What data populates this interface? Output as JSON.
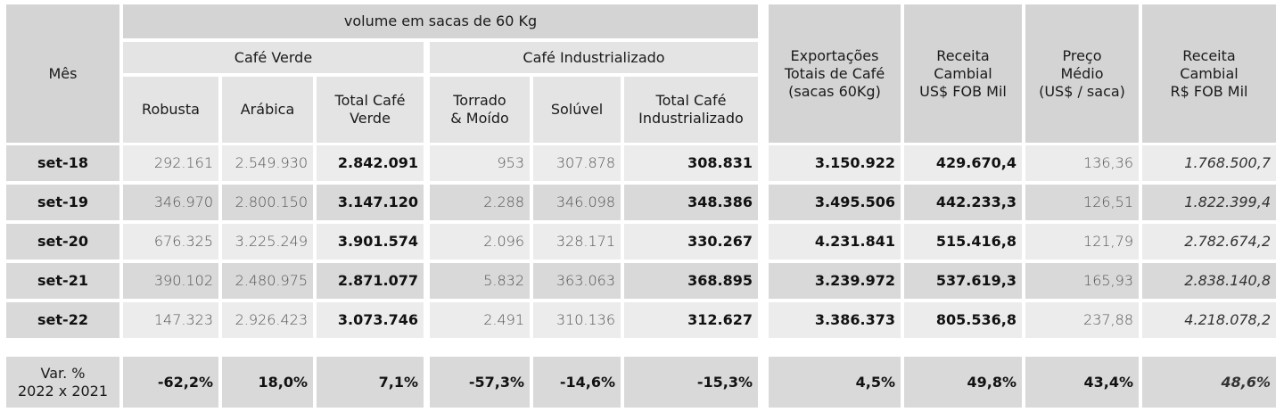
{
  "header": {
    "mes": "Mês",
    "volume": "volume em sacas de 60 Kg",
    "cafe_verde": "Café Verde",
    "cafe_industrializado": "Café Industrializado",
    "robusta": "Robusta",
    "arabica": "Arábica",
    "total_verde": "Total Café\nVerde",
    "torrado": "Torrado\n& Moído",
    "soluvel": "Solúvel",
    "total_ind": "Total Café\nIndustrializado",
    "export_totais": "Exportações\nTotais de Café\n(sacas 60Kg)",
    "receita_usd": "Receita\nCambial\nUS$ FOB Mil",
    "preco_medio": "Preço\nMédio\n(US$ / saca)",
    "receita_brl": "Receita\nCambial\nR$ FOB Mil"
  },
  "rows": [
    {
      "mes": "set-18",
      "robusta": "292.161",
      "arabica": "2.549.930",
      "total_verde": "2.842.091",
      "torrado": "953",
      "soluvel": "307.878",
      "total_ind": "308.831",
      "export": "3.150.922",
      "receita_usd": "429.670,4",
      "preco": "136,36",
      "receita_brl": "1.768.500,7"
    },
    {
      "mes": "set-19",
      "robusta": "346.970",
      "arabica": "2.800.150",
      "total_verde": "3.147.120",
      "torrado": "2.288",
      "soluvel": "346.098",
      "total_ind": "348.386",
      "export": "3.495.506",
      "receita_usd": "442.233,3",
      "preco": "126,51",
      "receita_brl": "1.822.399,4"
    },
    {
      "mes": "set-20",
      "robusta": "676.325",
      "arabica": "3.225.249",
      "total_verde": "3.901.574",
      "torrado": "2.096",
      "soluvel": "328.171",
      "total_ind": "330.267",
      "export": "4.231.841",
      "receita_usd": "515.416,8",
      "preco": "121,79",
      "receita_brl": "2.782.674,2"
    },
    {
      "mes": "set-21",
      "robusta": "390.102",
      "arabica": "2.480.975",
      "total_verde": "2.871.077",
      "torrado": "5.832",
      "soluvel": "363.063",
      "total_ind": "368.895",
      "export": "3.239.972",
      "receita_usd": "537.619,3",
      "preco": "165,93",
      "receita_brl": "2.838.140,8"
    },
    {
      "mes": "set-22",
      "robusta": "147.323",
      "arabica": "2.926.423",
      "total_verde": "3.073.746",
      "torrado": "2.491",
      "soluvel": "310.136",
      "total_ind": "312.627",
      "export": "3.386.373",
      "receita_usd": "805.536,8",
      "preco": "237,88",
      "receita_brl": "4.218.078,2"
    }
  ],
  "variation": {
    "label": "Var. %\n2022 x 2021",
    "robusta": "-62,2%",
    "arabica": "18,0%",
    "total_verde": "7,1%",
    "torrado": "-57,3%",
    "soluvel": "-14,6%",
    "total_ind": "-15,3%",
    "export": "4,5%",
    "receita_usd": "49,8%",
    "preco": "43,4%",
    "receita_brl": "48,6%"
  }
}
